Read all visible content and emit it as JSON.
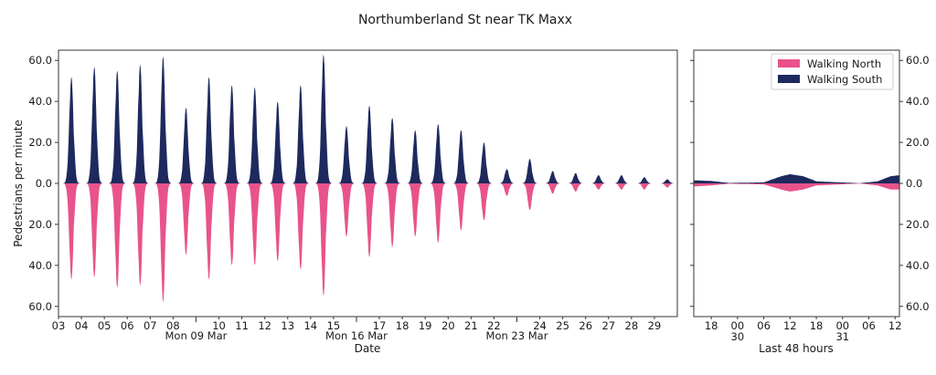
{
  "chart_data": {
    "type": "area",
    "title": "Northumberland St near TK Maxx",
    "ylabel": "Pedestrians per minute",
    "yticks": [
      "60.0",
      "40.0",
      "20.0",
      "0.0",
      "20.0",
      "40.0",
      "60.0"
    ],
    "colors": {
      "north": "#e8538b",
      "south": "#1e2a5e"
    },
    "legend": {
      "placement": "top-right",
      "entries": [
        "Walking North",
        "Walking South"
      ]
    },
    "series_names": [
      "Walking North",
      "Walking South"
    ],
    "panels": [
      {
        "name": "main",
        "xlabel": "Date",
        "xlim": [
          "2020-03-03",
          "2020-03-30"
        ],
        "ylim": [
          -65,
          65
        ],
        "x_minor_ticks": [
          "03",
          "04",
          "05",
          "06",
          "07",
          "08",
          "10",
          "11",
          "12",
          "13",
          "14",
          "15",
          "17",
          "18",
          "19",
          "20",
          "21",
          "22",
          "24",
          "25",
          "26",
          "27",
          "28",
          "29"
        ],
        "x_major_ticks": [
          "Mon 09 Mar",
          "Mon 16 Mar",
          "Mon 23 Mar"
        ],
        "daily_peaks": [
          {
            "date": "2020-03-03",
            "south": 52,
            "north": 47
          },
          {
            "date": "2020-03-04",
            "south": 57,
            "north": 46
          },
          {
            "date": "2020-03-05",
            "south": 55,
            "north": 51
          },
          {
            "date": "2020-03-06",
            "south": 58,
            "north": 50
          },
          {
            "date": "2020-03-07",
            "south": 62,
            "north": 58
          },
          {
            "date": "2020-03-08",
            "south": 37,
            "north": 35
          },
          {
            "date": "2020-03-09",
            "south": 52,
            "north": 47
          },
          {
            "date": "2020-03-10",
            "south": 48,
            "north": 40
          },
          {
            "date": "2020-03-11",
            "south": 47,
            "north": 40
          },
          {
            "date": "2020-03-12",
            "south": 40,
            "north": 38
          },
          {
            "date": "2020-03-13",
            "south": 48,
            "north": 42
          },
          {
            "date": "2020-03-14",
            "south": 63,
            "north": 55
          },
          {
            "date": "2020-03-15",
            "south": 28,
            "north": 26
          },
          {
            "date": "2020-03-16",
            "south": 38,
            "north": 36
          },
          {
            "date": "2020-03-17",
            "south": 32,
            "north": 31
          },
          {
            "date": "2020-03-18",
            "south": 26,
            "north": 26
          },
          {
            "date": "2020-03-19",
            "south": 29,
            "north": 29
          },
          {
            "date": "2020-03-20",
            "south": 26,
            "north": 23
          },
          {
            "date": "2020-03-21",
            "south": 20,
            "north": 18
          },
          {
            "date": "2020-03-22",
            "south": 7,
            "north": 6
          },
          {
            "date": "2020-03-23",
            "south": 12,
            "north": 13
          },
          {
            "date": "2020-03-24",
            "south": 6,
            "north": 5
          },
          {
            "date": "2020-03-25",
            "south": 5,
            "north": 4
          },
          {
            "date": "2020-03-26",
            "south": 4,
            "north": 3
          },
          {
            "date": "2020-03-27",
            "south": 4,
            "north": 3
          },
          {
            "date": "2020-03-28",
            "south": 3,
            "north": 3
          },
          {
            "date": "2020-03-29",
            "south": 2,
            "north": 2
          }
        ]
      },
      {
        "name": "last-48-hours",
        "xlabel": "Last 48 hours",
        "xlim": [
          "2020-03-29 14:00",
          "2020-03-31 13:00"
        ],
        "ylim": [
          -65,
          65
        ],
        "x_minor_ticks": [
          "18",
          "00",
          "06",
          "12",
          "18",
          "00",
          "06",
          "12"
        ],
        "x_major_ticks": [
          "30",
          "31"
        ],
        "hourly_levels": [
          {
            "time": "2020-03-29 14:00",
            "south": 1.5,
            "north": 1.5
          },
          {
            "time": "2020-03-29 18:00",
            "south": 1.2,
            "north": 1.0
          },
          {
            "time": "2020-03-29 22:00",
            "south": 0.2,
            "north": 0.2
          },
          {
            "time": "2020-03-30 06:00",
            "south": 0.5,
            "north": 0.5
          },
          {
            "time": "2020-03-30 10:00",
            "south": 3.5,
            "north": 3.0
          },
          {
            "time": "2020-03-30 12:00",
            "south": 4.5,
            "north": 4.0
          },
          {
            "time": "2020-03-30 15:00",
            "south": 3.5,
            "north": 3.0
          },
          {
            "time": "2020-03-30 18:00",
            "south": 1.0,
            "north": 1.0
          },
          {
            "time": "2020-03-31 04:00",
            "south": 0.1,
            "north": 0.1
          },
          {
            "time": "2020-03-31 08:00",
            "south": 1.0,
            "north": 1.0
          },
          {
            "time": "2020-03-31 11:00",
            "south": 3.5,
            "north": 3.0
          },
          {
            "time": "2020-03-31 13:00",
            "south": 4.0,
            "north": 3.0
          }
        ]
      }
    ]
  }
}
